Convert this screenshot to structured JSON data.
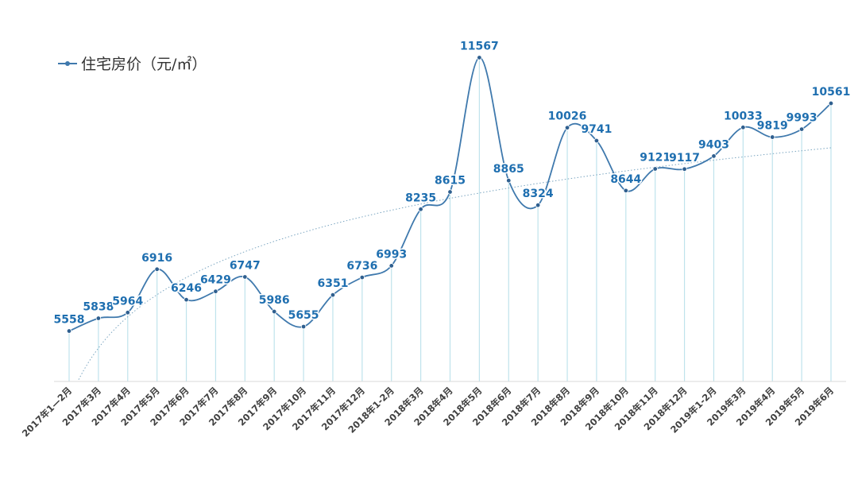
{
  "chart_data": {
    "type": "line",
    "title": "",
    "xlabel": "",
    "ylabel": "",
    "grid": false,
    "legend_position": "top-left",
    "categories": [
      "2017年1—2月",
      "2017年3月",
      "2017年4月",
      "2017年5月",
      "2017年6月",
      "2017年7月",
      "2017年8月",
      "2017年9月",
      "2017年10月",
      "2017年11月",
      "2017年12月",
      "2018年1-2月",
      "2018年3月",
      "2018年4月",
      "2018年5月",
      "2018年6月",
      "2018年7月",
      "2018年8月",
      "2018年9月",
      "2018年10月",
      "2018年11月",
      "2018年12月",
      "2019年1-2月",
      "2019年3月",
      "2019年4月",
      "2019年5月",
      "2019年6月"
    ],
    "series": [
      {
        "name": "住宅房价（元/㎡）",
        "values": [
          5558,
          5838,
          5964,
          6916,
          6246,
          6429,
          6747,
          5986,
          5655,
          6351,
          6736,
          6993,
          8235,
          8615,
          11567,
          8865,
          8324,
          10026,
          9741,
          8644,
          9121,
          9117,
          9403,
          10033,
          9819,
          9993,
          10561
        ],
        "color": "#3f79ad"
      }
    ],
    "trendline": "logarithmic",
    "ylim": [
      4450,
      11750
    ],
    "colors": {
      "line": "#3f79ad",
      "label_fill": "#1f6fb0",
      "label_stroke": "#ffffff",
      "drop_line": "#bfe3ec",
      "axis": "#d9d9d9",
      "trend": "#7aa5c0",
      "tick_text": "#404040"
    }
  }
}
